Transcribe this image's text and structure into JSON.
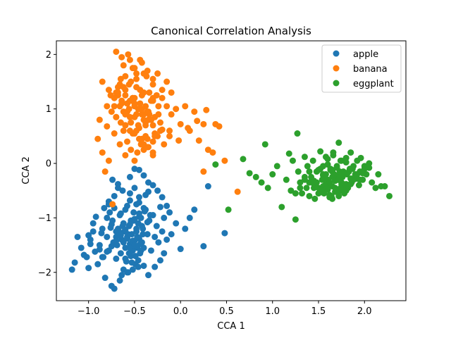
{
  "chart_data": {
    "type": "scatter",
    "title": "Canonical Correlation Analysis",
    "xlabel": "CCA 1",
    "ylabel": "CCA 2",
    "xlim": [
      -1.35,
      2.45
    ],
    "ylim": [
      -2.52,
      2.25
    ],
    "xticks": [
      -1.0,
      -0.5,
      0.0,
      0.5,
      1.0,
      1.5,
      2.0
    ],
    "xtick_labels": [
      "−1.0",
      "−0.5",
      "0.0",
      "0.5",
      "1.0",
      "1.5",
      "2.0"
    ],
    "yticks": [
      -2,
      -1,
      0,
      1,
      2
    ],
    "ytick_labels": [
      "−2",
      "−1",
      "0",
      "1",
      "2"
    ],
    "grid": false,
    "legend_position": "top-right",
    "series": [
      {
        "name": "apple",
        "color": "#1f77b4",
        "x": [
          -1.18,
          -1.15,
          -1.12,
          -1.08,
          -1.05,
          -1.02,
          -1.0,
          -0.98,
          -0.95,
          -0.93,
          -0.9,
          -0.88,
          -0.86,
          -0.84,
          -0.82,
          -0.8,
          -0.78,
          -0.76,
          -0.75,
          -0.73,
          -0.72,
          -0.7,
          -0.69,
          -0.68,
          -0.66,
          -0.65,
          -0.64,
          -0.62,
          -0.61,
          -0.6,
          -0.59,
          -0.58,
          -0.57,
          -0.56,
          -0.55,
          -0.54,
          -0.53,
          -0.52,
          -0.51,
          -0.5,
          -0.49,
          -0.48,
          -0.47,
          -0.46,
          -0.45,
          -0.44,
          -0.43,
          -0.42,
          -0.41,
          -0.4,
          -0.38,
          -0.36,
          -0.34,
          -0.32,
          -0.3,
          -0.28,
          -0.26,
          -0.24,
          -0.22,
          -0.2,
          -0.18,
          -0.15,
          -0.12,
          -0.1,
          -0.05,
          0.0,
          0.05,
          0.1,
          0.15,
          0.25,
          0.3,
          0.48,
          -0.78,
          -0.74,
          -0.7,
          -0.66,
          -0.63,
          -0.6,
          -0.57,
          -0.54,
          -0.51,
          -0.48,
          -0.45,
          -0.42,
          -0.39,
          -0.36,
          -0.33,
          -0.62,
          -0.58,
          -0.55,
          -0.52,
          -0.5,
          -0.47,
          -0.44,
          -0.41,
          -0.6,
          -0.56,
          -0.53,
          -0.49,
          -0.46,
          -0.43,
          -0.64,
          -0.58,
          -0.52,
          -0.46,
          -0.4,
          -0.55,
          -0.5,
          -0.45,
          -0.74,
          -0.68,
          -0.63,
          -0.72,
          -0.68,
          -0.78,
          -0.83,
          -0.92,
          -0.95,
          -1.0,
          -0.98,
          -0.88,
          -0.85,
          -0.8,
          -0.77,
          -0.75,
          -0.72,
          -0.7,
          -0.67,
          -0.65,
          -0.62,
          -0.58,
          -0.55,
          -0.48,
          -0.45,
          -0.38,
          -0.35,
          -0.3,
          -0.25,
          -0.2,
          -0.15,
          -0.35,
          -0.28,
          -0.22,
          -0.18,
          -0.55,
          -0.5,
          -0.45,
          -0.4,
          -0.35,
          -0.4,
          -0.45,
          -0.5,
          -0.55,
          -0.6,
          -0.65,
          -0.7,
          -0.75,
          -0.8,
          -0.85
        ],
        "y": [
          -1.95,
          -1.82,
          -1.35,
          -1.55,
          -1.68,
          -1.72,
          -1.92,
          -1.4,
          -1.25,
          -1.62,
          -1.85,
          -1.5,
          -1.28,
          -1.72,
          -2.1,
          -1.35,
          -1.6,
          -1.18,
          -2.25,
          -1.45,
          -2.3,
          -1.75,
          -1.5,
          -1.2,
          -2.15,
          -1.65,
          -1.4,
          -1.95,
          -1.25,
          -1.55,
          -1.8,
          -1.35,
          -2.0,
          -1.15,
          -1.48,
          -1.7,
          -1.3,
          -1.6,
          -1.05,
          -1.42,
          -1.85,
          -1.25,
          -1.55,
          -1.1,
          -1.38,
          -1.65,
          -1.0,
          -1.45,
          -1.2,
          -1.55,
          -0.85,
          -1.3,
          -1.05,
          -1.6,
          -0.95,
          -1.35,
          -1.15,
          -1.45,
          -0.8,
          -1.25,
          -1.0,
          -1.4,
          -0.9,
          -1.3,
          -1.1,
          -1.57,
          -1.2,
          -1.0,
          -0.85,
          -1.52,
          -0.42,
          -1.28,
          -0.75,
          -1.05,
          -1.25,
          -0.95,
          -1.15,
          -0.85,
          -1.3,
          -1.05,
          -0.9,
          -1.2,
          -0.98,
          -1.15,
          -0.88,
          -1.08,
          -0.95,
          -1.45,
          -1.38,
          -1.55,
          -1.42,
          -1.5,
          -1.35,
          -1.48,
          -1.3,
          -1.75,
          -1.65,
          -1.82,
          -1.7,
          -1.78,
          -1.6,
          -2.05,
          -2.0,
          -1.95,
          -1.9,
          -1.88,
          -0.55,
          -0.45,
          -0.62,
          -0.3,
          -0.38,
          -0.5,
          -0.6,
          -0.45,
          -0.7,
          -0.82,
          -0.98,
          -1.1,
          -1.32,
          -1.48,
          -1.58,
          -1.2,
          -1.0,
          -0.9,
          -1.12,
          -0.82,
          -1.35,
          -1.25,
          -0.92,
          -1.1,
          -0.78,
          -0.68,
          -0.75,
          -0.72,
          -0.58,
          -0.52,
          -0.4,
          -0.5,
          -0.62,
          -0.78,
          -2.05,
          -1.9,
          -1.78,
          -1.65,
          -0.25,
          -0.1,
          -0.12,
          -0.22,
          -0.35,
          -0.82,
          -0.92,
          -1.02,
          -1.12,
          -1.22,
          -1.32,
          -1.42,
          -1.52,
          -1.62,
          -1.72
        ]
      },
      {
        "name": "banana",
        "color": "#ff7f0e",
        "x": [
          -0.9,
          -0.88,
          -0.85,
          -0.82,
          -0.8,
          -0.78,
          -0.76,
          -0.74,
          -0.72,
          -0.7,
          -0.68,
          -0.66,
          -0.64,
          -0.62,
          -0.6,
          -0.58,
          -0.56,
          -0.54,
          -0.52,
          -0.5,
          -0.48,
          -0.46,
          -0.44,
          -0.42,
          -0.4,
          -0.38,
          -0.36,
          -0.34,
          -0.32,
          -0.3,
          -0.28,
          -0.26,
          -0.24,
          -0.22,
          -0.2,
          -0.18,
          -0.15,
          -0.12,
          -0.1,
          -0.05,
          0.0,
          0.05,
          0.1,
          0.15,
          0.2,
          0.25,
          0.3,
          0.35,
          0.42,
          0.48,
          0.62,
          0.25,
          -0.72,
          -0.68,
          -0.64,
          -0.6,
          -0.56,
          -0.52,
          -0.48,
          -0.44,
          -0.4,
          -0.36,
          -0.32,
          -0.28,
          -0.24,
          -0.7,
          -0.66,
          -0.62,
          -0.58,
          -0.54,
          -0.5,
          -0.46,
          -0.42,
          -0.38,
          -0.34,
          -0.3,
          -0.65,
          -0.6,
          -0.55,
          -0.5,
          -0.45,
          -0.4,
          -0.35,
          -0.58,
          -0.52,
          -0.47,
          -0.43,
          -0.38,
          -0.62,
          -0.55,
          -0.48,
          -0.42,
          -0.36,
          -0.3,
          -0.7,
          -0.64,
          -0.57,
          -0.5,
          -0.44,
          -0.37,
          -0.3,
          -0.25,
          -0.2,
          -0.15,
          -0.1,
          -0.6,
          -0.5,
          -0.4,
          -0.3,
          -0.75,
          -0.65,
          -0.55,
          -0.45,
          -0.35,
          -0.25,
          -0.8,
          -0.7,
          -0.6,
          -0.5,
          -0.4,
          -0.3,
          -0.2,
          -0.55,
          -0.45,
          -0.35,
          -0.6,
          -0.5,
          -0.4,
          -0.3,
          -0.68,
          -0.58,
          -0.48,
          -0.38,
          -0.28,
          -0.62,
          -0.52,
          -0.42,
          -0.32,
          -0.22,
          -0.12,
          -0.02,
          0.08,
          0.18,
          0.28,
          0.38,
          -0.85,
          -0.78,
          -0.72,
          -0.66,
          -0.6,
          -0.54,
          -0.48,
          -0.42,
          -0.36,
          -0.3
        ],
        "y": [
          0.45,
          0.8,
          0.2,
          -0.15,
          0.68,
          0.05,
          1.25,
          -0.75,
          0.55,
          0.85,
          1.4,
          0.35,
          1.1,
          0.6,
          1.6,
          0.95,
          1.45,
          0.25,
          1.75,
          1.2,
          1.55,
          0.7,
          1.35,
          0.9,
          1.65,
          1.05,
          0.45,
          1.3,
          0.8,
          1.15,
          0.55,
          1.25,
          0.9,
          0.75,
          1.2,
          0.35,
          1.05,
          0.6,
          0.9,
          1.0,
          0.72,
          1.05,
          0.6,
          0.95,
          0.42,
          0.72,
          0.25,
          0.2,
          0.68,
          0.05,
          -0.52,
          -0.15,
          1.05,
          1.25,
          1.15,
          1.35,
          1.0,
          1.2,
          1.4,
          1.1,
          1.3,
          0.95,
          1.15,
          0.85,
          1.05,
          1.3,
          1.45,
          0.95,
          1.1,
          1.5,
          0.85,
          1.0,
          1.25,
          0.75,
          0.9,
          1.2,
          1.55,
          0.7,
          0.85,
          1.05,
          0.65,
          0.8,
          0.95,
          0.4,
          0.55,
          0.2,
          0.35,
          0.5,
          1.8,
          1.9,
          1.65,
          1.85,
          1.7,
          1.55,
          2.05,
          1.95,
          2.0,
          1.75,
          1.9,
          1.6,
          1.45,
          1.65,
          1.35,
          1.5,
          1.3,
          0.15,
          0.05,
          0.25,
          0.4,
          0.95,
          0.75,
          0.6,
          0.45,
          0.3,
          0.5,
          1.05,
          0.85,
          0.7,
          0.55,
          0.35,
          0.2,
          0.62,
          1.15,
          1.0,
          0.8,
          1.25,
          1.1,
          0.9,
          0.7,
          1.3,
          1.1,
          0.9,
          0.7,
          0.5,
          1.4,
          1.2,
          1.0,
          0.8,
          0.6,
          0.5,
          0.42,
          0.65,
          0.78,
          0.98,
          0.72,
          1.5,
          1.35,
          1.2,
          1.05,
          0.9,
          0.75,
          0.6,
          0.45,
          0.3,
          0.15
        ]
      },
      {
        "name": "eggplant",
        "color": "#2ca02c",
        "x": [
          0.38,
          0.52,
          0.68,
          0.75,
          0.82,
          0.88,
          0.92,
          0.95,
          1.0,
          1.05,
          1.1,
          1.15,
          1.18,
          1.2,
          1.22,
          1.25,
          1.27,
          1.28,
          1.3,
          1.32,
          1.35,
          1.37,
          1.38,
          1.4,
          1.42,
          1.44,
          1.45,
          1.46,
          1.48,
          1.5,
          1.52,
          1.54,
          1.55,
          1.56,
          1.58,
          1.6,
          1.62,
          1.63,
          1.64,
          1.65,
          1.66,
          1.68,
          1.7,
          1.71,
          1.72,
          1.73,
          1.74,
          1.75,
          1.76,
          1.78,
          1.8,
          1.81,
          1.82,
          1.84,
          1.85,
          1.86,
          1.88,
          1.9,
          1.92,
          1.94,
          1.95,
          1.96,
          1.98,
          2.0,
          2.02,
          2.05,
          2.08,
          2.12,
          2.15,
          2.18,
          2.22,
          2.27,
          1.55,
          1.6,
          1.65,
          1.7,
          1.75,
          1.8,
          1.85,
          1.9,
          1.58,
          1.63,
          1.68,
          1.73,
          1.78,
          1.83,
          1.88,
          1.52,
          1.57,
          1.62,
          1.67,
          1.72,
          1.77,
          1.82,
          1.87,
          1.92,
          1.6,
          1.65,
          1.7,
          1.75,
          1.8,
          1.85,
          1.45,
          1.5,
          1.55,
          1.6,
          1.65,
          1.7,
          1.75,
          1.8,
          1.85,
          1.9,
          1.95,
          2.0,
          1.35,
          1.4,
          1.45,
          1.5,
          1.55,
          1.62,
          1.68,
          1.74,
          1.8,
          1.86,
          1.25,
          1.3,
          1.35,
          1.4,
          1.48,
          1.55,
          1.62,
          1.7,
          1.78,
          1.85,
          1.92,
          1.98,
          2.05,
          1.65,
          1.72,
          1.78,
          1.58,
          1.66,
          1.74
        ],
        "y": [
          -0.02,
          -0.85,
          0.08,
          -0.18,
          -0.25,
          -0.35,
          0.35,
          -0.45,
          -0.2,
          -0.05,
          -0.8,
          -0.3,
          0.18,
          -0.5,
          0.05,
          -1.03,
          0.55,
          -0.15,
          -0.35,
          -0.55,
          0.12,
          -0.45,
          -0.05,
          -0.6,
          -0.25,
          0.05,
          -0.38,
          -0.65,
          -0.15,
          -0.45,
          0.22,
          -0.3,
          -0.05,
          -0.55,
          -0.2,
          0.08,
          -0.4,
          -0.1,
          -0.6,
          -0.25,
          0.15,
          -0.45,
          -0.05,
          -0.3,
          0.38,
          -0.15,
          -0.5,
          0.05,
          -0.25,
          -0.4,
          0.1,
          -0.2,
          -0.45,
          -0.1,
          0.2,
          -0.35,
          -0.05,
          -0.25,
          0.05,
          -0.4,
          -0.15,
          0.1,
          -0.3,
          -0.05,
          -0.2,
          0.0,
          -0.35,
          -0.45,
          -0.2,
          -0.42,
          -0.42,
          -0.6,
          -0.2,
          -0.3,
          -0.15,
          -0.25,
          -0.35,
          -0.18,
          -0.28,
          -0.22,
          -0.38,
          -0.12,
          -0.32,
          -0.22,
          -0.42,
          -0.15,
          -0.3,
          -0.1,
          -0.25,
          -0.35,
          -0.2,
          -0.3,
          -0.15,
          -0.4,
          -0.1,
          -0.2,
          -0.48,
          -0.42,
          -0.52,
          -0.38,
          -0.5,
          -0.28,
          -0.32,
          -0.12,
          -0.22,
          -0.02,
          -0.12,
          -0.08,
          -0.18,
          0.02,
          -0.1,
          -0.2,
          -0.3,
          -0.1,
          -0.25,
          -0.35,
          -0.45,
          -0.55,
          -0.42,
          -0.62,
          -0.52,
          -0.45,
          -0.38,
          -0.28,
          -0.55,
          -0.45,
          -0.3,
          -0.15,
          -0.35,
          -0.5,
          -0.58,
          -0.48,
          -0.55,
          -0.38,
          -0.28,
          -0.18,
          -0.08,
          -0.65,
          -0.6,
          -0.5,
          0.12,
          0.2,
          0.05
        ]
      }
    ]
  }
}
